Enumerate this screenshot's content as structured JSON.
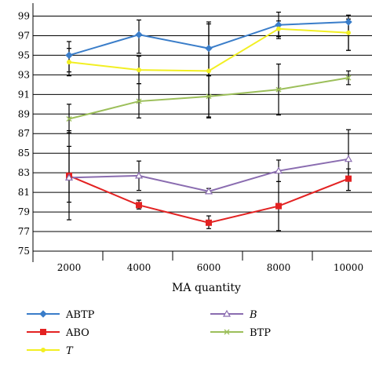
{
  "chart_data": {
    "type": "line",
    "xlabel": "MA quantity",
    "ylabel": "",
    "ylim": [
      75,
      100
    ],
    "yticks": [
      75,
      77,
      79,
      81,
      83,
      85,
      87,
      89,
      91,
      93,
      95,
      97,
      99
    ],
    "categories": [
      "2000",
      "4000",
      "6000",
      "8000",
      "10000"
    ],
    "grid": "horizontal",
    "legend_position": "bottom",
    "series": [
      {
        "name": "ABTP",
        "color": "#3a7dc9",
        "marker": "diamond",
        "italic": false,
        "values": [
          95.0,
          97.1,
          95.7,
          98.1,
          98.4
        ],
        "err_low": [
          93.3,
          95.2,
          92.9,
          96.7,
          95.5
        ],
        "err_high": [
          96.4,
          98.6,
          98.4,
          99.4,
          98.7
        ]
      },
      {
        "name": "ABO",
        "color": "#e32222",
        "marker": "square",
        "italic": false,
        "values": [
          82.7,
          79.7,
          77.9,
          79.6,
          82.4
        ],
        "err_low": [
          78.2,
          79.3,
          77.3,
          77.1,
          81.2
        ],
        "err_high": [
          87.3,
          80.2,
          78.6,
          82.1,
          83.4
        ]
      },
      {
        "name": "T",
        "color": "#f2ef22",
        "marker": "circle",
        "italic": true,
        "values": [
          94.3,
          93.5,
          93.4,
          97.7,
          97.3
        ],
        "err_low": [
          92.9,
          92.1,
          88.6,
          96.9,
          95.5
        ],
        "err_high": [
          95.7,
          94.9,
          98.2,
          98.5,
          99.1
        ]
      },
      {
        "name": "B",
        "color": "#8a6cb0",
        "marker": "triangle",
        "italic": true,
        "values": [
          82.5,
          82.7,
          81.1,
          83.2,
          84.4
        ],
        "err_low": [
          80.0,
          81.2,
          80.9,
          82.1,
          81.2
        ],
        "err_high": [
          85.7,
          84.2,
          81.4,
          84.3,
          87.4
        ]
      },
      {
        "name": "BTP",
        "color": "#9cbf5a",
        "marker": "x",
        "italic": false,
        "values": [
          88.5,
          90.3,
          90.8,
          91.5,
          92.7
        ],
        "err_low": [
          87.1,
          88.6,
          88.7,
          88.9,
          92.0
        ],
        "err_high": [
          90.0,
          92.1,
          92.9,
          94.1,
          93.4
        ]
      }
    ]
  }
}
